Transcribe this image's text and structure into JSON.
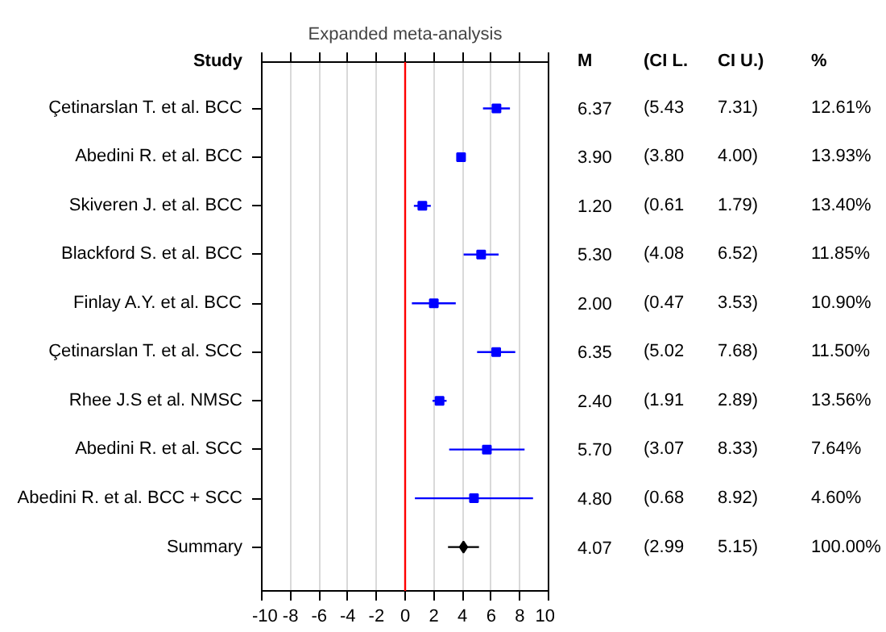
{
  "chart_data": {
    "type": "scatter",
    "orientation": "horizontal",
    "title": "Expanded meta-analysis",
    "categories": [
      "Çetinarslan T. et al. BCC",
      "Abedini R. et al. BCC",
      "Skiveren J. et al. BCC",
      "Blackford S. et al. BCC",
      "Finlay A.Y. et al. BCC",
      "Çetinarslan T. et al. SCC",
      "Rhee J.S et al. NMSC",
      "Abedini R. et al. SCC",
      "Abedini R. et al. BCC + SCC",
      "Summary"
    ],
    "series": [
      {
        "color": "#0000ff",
        "marker": "square",
        "values": [
          6.37,
          3.9,
          1.2,
          5.3,
          2.0,
          6.35,
          2.4,
          5.7,
          4.8,
          null
        ],
        "errors": [
          [
            5.43,
            7.31
          ],
          [
            3.8,
            4.0
          ],
          [
            0.61,
            1.79
          ],
          [
            4.08,
            6.52
          ],
          [
            0.47,
            3.53
          ],
          [
            5.02,
            7.68
          ],
          [
            1.91,
            2.89
          ],
          [
            3.07,
            8.33
          ],
          [
            0.68,
            8.92
          ],
          null
        ],
        "value_labels": [
          "6.37",
          "3.90",
          "1.20",
          "5.30",
          "2.00",
          "6.35",
          "2.40",
          "5.70",
          "4.80",
          null
        ]
      },
      {
        "color": "#000000",
        "marker": "diamond",
        "values": [
          null,
          null,
          null,
          null,
          null,
          null,
          null,
          null,
          null,
          4.07
        ],
        "errors": [
          null,
          null,
          null,
          null,
          null,
          null,
          null,
          null,
          null,
          [
            2.99,
            5.15
          ]
        ]
      }
    ],
    "xlim": [
      -10,
      10
    ],
    "xticks": [
      -10,
      -8,
      -6,
      -4,
      -2,
      0,
      2,
      4,
      6,
      8,
      10
    ],
    "grid": "x",
    "ref_lines": [
      {
        "axis": "x",
        "value": 0,
        "color": "#ff0000"
      }
    ],
    "annotations": [
      "Study",
      "M",
      "(CI L.",
      "CI U.)",
      "%",
      "(5.43",
      "7.31)",
      "12.61%",
      "(3.80",
      "4.00)",
      "13.93%",
      "(0.61",
      "1.79)",
      "13.40%",
      "(4.08",
      "6.52)",
      "11.85%",
      "(0.47",
      "3.53)",
      "10.90%",
      "(5.02",
      "7.68)",
      "11.50%",
      "(1.91",
      "2.89)",
      "13.56%",
      "(3.07",
      "8.33)",
      "7.64%",
      "(0.68",
      "8.92)",
      "4.60%",
      "4.07",
      "(2.99",
      "5.15)",
      "100.00%"
    ]
  }
}
